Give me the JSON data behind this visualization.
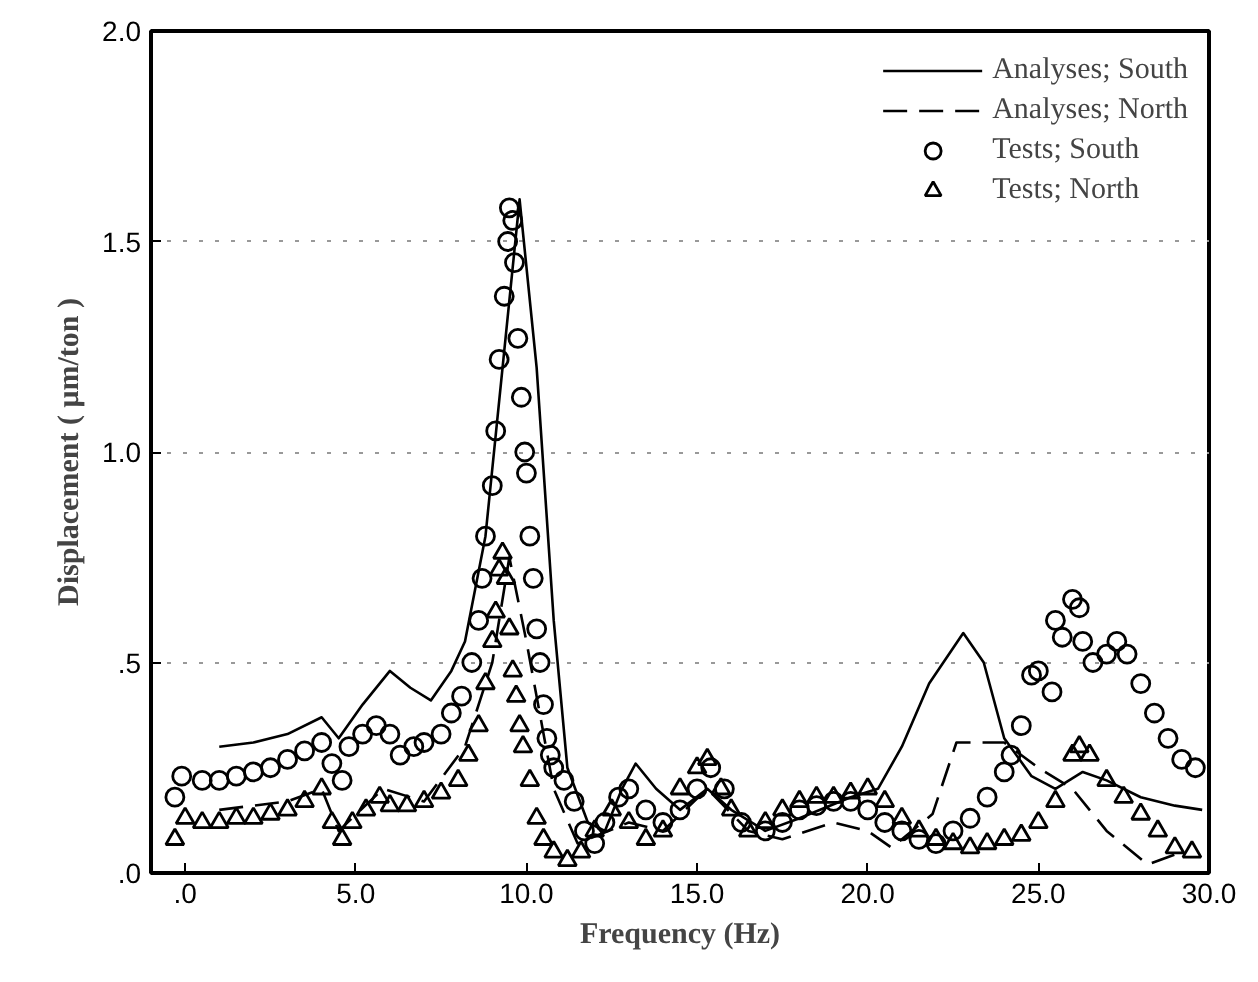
{
  "chart_data": {
    "type": "line",
    "xlabel": "Frequency (Hz)",
    "ylabel": "Displacement ( μm/ton )",
    "xlim": [
      -1,
      30
    ],
    "ylim": [
      0,
      2
    ],
    "xticks": [
      {
        "value": 0,
        "label": ".0"
      },
      {
        "value": 5,
        "label": "5.0"
      },
      {
        "value": 10,
        "label": "10.0"
      },
      {
        "value": 15,
        "label": "15.0"
      },
      {
        "value": 20,
        "label": "20.0"
      },
      {
        "value": 25,
        "label": "25.0"
      },
      {
        "value": 30,
        "label": "30.0"
      }
    ],
    "yticks": [
      {
        "value": 0,
        "label": ".0"
      },
      {
        "value": 0.5,
        "label": ".5"
      },
      {
        "value": 1,
        "label": "1.0"
      },
      {
        "value": 1.5,
        "label": "1.5"
      },
      {
        "value": 2,
        "label": "2.0"
      }
    ],
    "grid": "y",
    "legend": "top right",
    "series": [
      {
        "name": "Analyses; South",
        "line_style": "solid",
        "marker": "none",
        "color": "#000000",
        "x": [
          1,
          2,
          3,
          4,
          4.5,
          5.2,
          6,
          6.6,
          7.2,
          7.8,
          8.2,
          8.8,
          9.3,
          9.8,
          10.3,
          10.8,
          11.2,
          11.8,
          12.3,
          12.8,
          13.2,
          13.8,
          14.5,
          15.3,
          16,
          17,
          18,
          19.5,
          20.3,
          21,
          21.8,
          22.8,
          23.4,
          24,
          24.8,
          25.5,
          26.3,
          27,
          28,
          29,
          29.8
        ],
        "values": [
          0.3,
          0.31,
          0.33,
          0.37,
          0.32,
          0.4,
          0.48,
          0.44,
          0.41,
          0.48,
          0.55,
          0.8,
          1.2,
          1.6,
          1.2,
          0.6,
          0.25,
          0.12,
          0.1,
          0.2,
          0.26,
          0.2,
          0.15,
          0.2,
          0.15,
          0.1,
          0.13,
          0.18,
          0.2,
          0.3,
          0.45,
          0.57,
          0.5,
          0.32,
          0.23,
          0.2,
          0.24,
          0.22,
          0.18,
          0.16,
          0.15
        ]
      },
      {
        "name": "Analyses; North",
        "line_style": "dashed",
        "marker": "none",
        "color": "#000000",
        "x": [
          1,
          2,
          3,
          4,
          4.5,
          5.8,
          7,
          8.2,
          9,
          9.5,
          10,
          10.8,
          11.5,
          13,
          14,
          15.3,
          16.5,
          17.5,
          19,
          20,
          20.7,
          21.9,
          22.6,
          24,
          25,
          26,
          27,
          28.2,
          29.2
        ],
        "values": [
          0.15,
          0.16,
          0.17,
          0.2,
          0.1,
          0.2,
          0.17,
          0.3,
          0.5,
          0.75,
          0.55,
          0.2,
          0.07,
          0.12,
          0.1,
          0.2,
          0.1,
          0.08,
          0.12,
          0.1,
          0.06,
          0.14,
          0.31,
          0.31,
          0.25,
          0.2,
          0.1,
          0.02,
          0.05
        ]
      },
      {
        "name": "Tests; South",
        "type": "scatter",
        "marker": "circle",
        "color": "#000000",
        "x": [
          -0.3,
          -0.1,
          0.5,
          1,
          1.5,
          2,
          2.5,
          3,
          3.5,
          4,
          4.3,
          4.6,
          4.8,
          5.2,
          5.6,
          6,
          6.3,
          6.7,
          7,
          7.5,
          7.8,
          8.1,
          8.4,
          8.6,
          8.7,
          8.8,
          9.0,
          9.1,
          9.2,
          9.35,
          9.45,
          9.5,
          9.6,
          9.65,
          9.75,
          9.85,
          9.95,
          10.0,
          10.1,
          10.2,
          10.3,
          10.4,
          10.5,
          10.6,
          10.7,
          10.8,
          11.1,
          11.4,
          11.7,
          12.0,
          12.3,
          12.7,
          13,
          13.5,
          14,
          14.5,
          15,
          15.4,
          15.8,
          16.3,
          17,
          17.5,
          18,
          18.5,
          19,
          19.5,
          20,
          20.5,
          21,
          21.5,
          22,
          22.5,
          23,
          23.5,
          24,
          24.2,
          24.5,
          24.8,
          25.0,
          25.4,
          25.5,
          25.7,
          26.0,
          26.2,
          26.3,
          26.6,
          27,
          27.3,
          27.6,
          28,
          28.4,
          28.8,
          29.2,
          29.6
        ],
        "values": [
          0.18,
          0.23,
          0.22,
          0.22,
          0.23,
          0.24,
          0.25,
          0.27,
          0.29,
          0.31,
          0.26,
          0.22,
          0.3,
          0.33,
          0.35,
          0.33,
          0.28,
          0.3,
          0.31,
          0.33,
          0.38,
          0.42,
          0.5,
          0.6,
          0.7,
          0.8,
          0.92,
          1.05,
          1.22,
          1.37,
          1.5,
          1.58,
          1.55,
          1.45,
          1.27,
          1.13,
          1.0,
          0.95,
          0.8,
          0.7,
          0.58,
          0.5,
          0.4,
          0.32,
          0.28,
          0.25,
          0.22,
          0.17,
          0.1,
          0.07,
          0.12,
          0.18,
          0.2,
          0.15,
          0.12,
          0.15,
          0.2,
          0.25,
          0.2,
          0.12,
          0.1,
          0.12,
          0.15,
          0.16,
          0.17,
          0.17,
          0.15,
          0.12,
          0.1,
          0.08,
          0.07,
          0.1,
          0.13,
          0.18,
          0.24,
          0.28,
          0.35,
          0.47,
          0.48,
          0.43,
          0.6,
          0.56,
          0.65,
          0.63,
          0.55,
          0.5,
          0.52,
          0.55,
          0.52,
          0.45,
          0.38,
          0.32,
          0.27,
          0.25
        ]
      },
      {
        "name": "Tests; North",
        "type": "scatter",
        "marker": "triangle",
        "color": "#000000",
        "x": [
          -0.3,
          0,
          0.5,
          1,
          1.5,
          2,
          2.5,
          3,
          3.5,
          4,
          4.3,
          4.6,
          4.9,
          5.3,
          5.7,
          6,
          6.5,
          7,
          7.5,
          8,
          8.3,
          8.6,
          8.8,
          9.0,
          9.1,
          9.2,
          9.3,
          9.4,
          9.5,
          9.6,
          9.7,
          9.8,
          9.9,
          10.1,
          10.3,
          10.5,
          10.8,
          11.2,
          11.6,
          12,
          12.5,
          13,
          13.5,
          14,
          14.5,
          15,
          15.3,
          15.7,
          16,
          16.5,
          17,
          17.5,
          18,
          18.5,
          19,
          19.5,
          20,
          20.5,
          21,
          21.5,
          22,
          22.5,
          23,
          23.5,
          24,
          24.5,
          25,
          25.5,
          26,
          26.2,
          26.5,
          27,
          27.5,
          28,
          28.5,
          29,
          29.5
        ],
        "values": [
          0.08,
          0.13,
          0.12,
          0.12,
          0.13,
          0.13,
          0.14,
          0.15,
          0.17,
          0.2,
          0.12,
          0.08,
          0.12,
          0.15,
          0.18,
          0.16,
          0.16,
          0.17,
          0.19,
          0.22,
          0.28,
          0.35,
          0.45,
          0.55,
          0.62,
          0.72,
          0.76,
          0.7,
          0.58,
          0.48,
          0.42,
          0.35,
          0.3,
          0.22,
          0.13,
          0.08,
          0.05,
          0.03,
          0.05,
          0.1,
          0.15,
          0.12,
          0.08,
          0.1,
          0.2,
          0.25,
          0.27,
          0.2,
          0.15,
          0.1,
          0.12,
          0.15,
          0.17,
          0.18,
          0.18,
          0.19,
          0.2,
          0.17,
          0.13,
          0.1,
          0.08,
          0.07,
          0.06,
          0.07,
          0.08,
          0.09,
          0.12,
          0.17,
          0.28,
          0.3,
          0.28,
          0.22,
          0.18,
          0.14,
          0.1,
          0.06,
          0.05
        ]
      }
    ]
  }
}
